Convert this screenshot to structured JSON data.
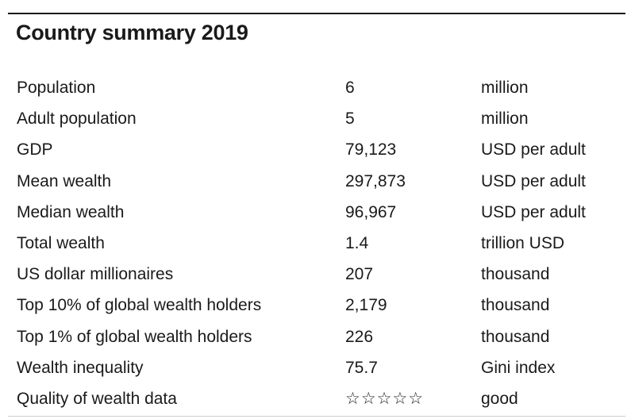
{
  "title": "Country summary 2019",
  "rows": [
    {
      "label": "Population",
      "value": "6",
      "unit": "million"
    },
    {
      "label": "Adult population",
      "value": "5",
      "unit": "million"
    },
    {
      "label": "GDP",
      "value": "79,123",
      "unit": "USD per adult"
    },
    {
      "label": "Mean wealth",
      "value": "297,873",
      "unit": "USD per adult"
    },
    {
      "label": "Median wealth",
      "value": "96,967",
      "unit": "USD per adult"
    },
    {
      "label": "Total wealth",
      "value": "1.4",
      "unit": "trillion USD"
    },
    {
      "label": "US dollar millionaires",
      "value": "207",
      "unit": "thousand"
    },
    {
      "label": "Top 10% of global wealth holders",
      "value": "2,179",
      "unit": "thousand"
    },
    {
      "label": "Top 1% of global wealth holders",
      "value": "226",
      "unit": "thousand"
    },
    {
      "label": "Wealth inequality",
      "value": "75.7",
      "unit": "Gini index"
    },
    {
      "label": "Quality of wealth data",
      "value": "☆☆☆☆☆",
      "unit": "good"
    }
  ]
}
